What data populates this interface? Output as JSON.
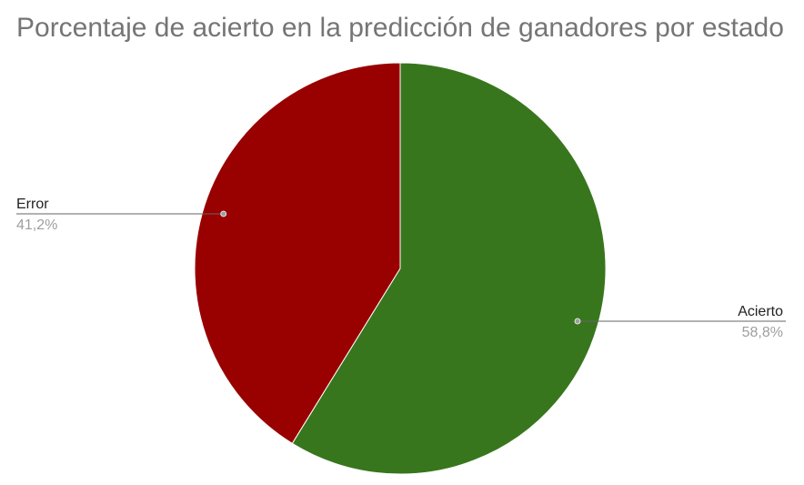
{
  "chart_data": {
    "type": "pie",
    "title": "Porcentaje de acierto en la predicción de ganadores por estado",
    "slices": [
      {
        "name": "Acierto",
        "value": 58.8,
        "label": "58,8%",
        "color": "#38761d"
      },
      {
        "name": "Error",
        "value": 41.2,
        "label": "41,2%",
        "color": "#990000"
      }
    ],
    "start_angle": "12 o'clock",
    "direction": "clockwise",
    "legend": "none"
  }
}
